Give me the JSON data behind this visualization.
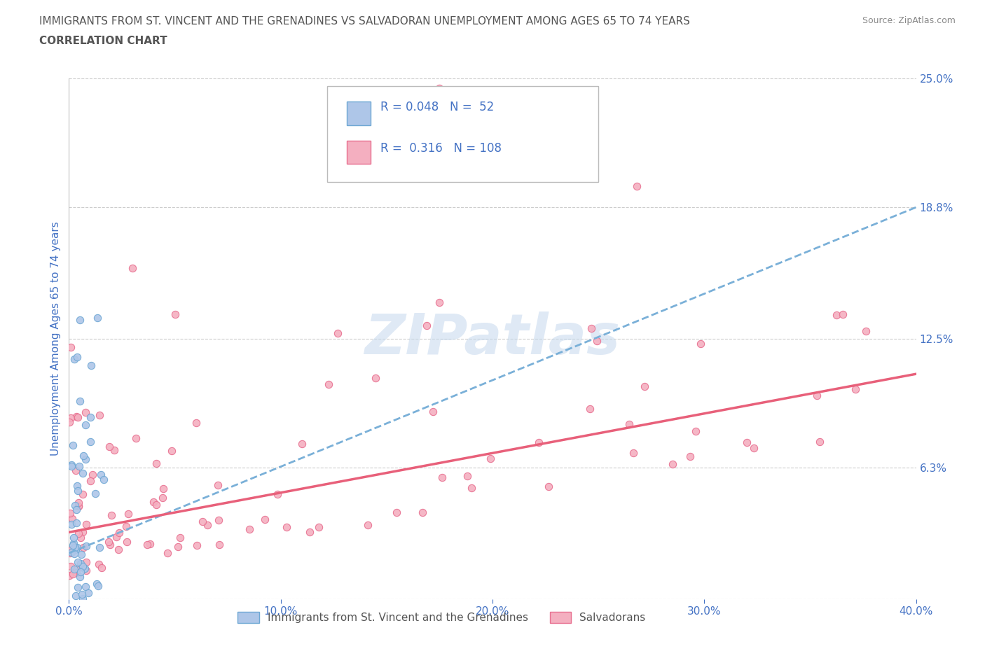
{
  "title_line1": "IMMIGRANTS FROM ST. VINCENT AND THE GRENADINES VS SALVADORAN UNEMPLOYMENT AMONG AGES 65 TO 74 YEARS",
  "title_line2": "CORRELATION CHART",
  "source_text": "Source: ZipAtlas.com",
  "ylabel": "Unemployment Among Ages 65 to 74 years",
  "xlim": [
    0.0,
    0.4
  ],
  "ylim": [
    0.0,
    0.25
  ],
  "xticks": [
    0.0,
    0.1,
    0.2,
    0.3,
    0.4
  ],
  "xticklabels": [
    "0.0%",
    "10.0%",
    "20.0%",
    "30.0%",
    "40.0%"
  ],
  "right_ytick_vals": [
    0.0,
    0.063,
    0.125,
    0.188,
    0.25
  ],
  "right_yticklabels": [
    "",
    "6.3%",
    "12.5%",
    "18.8%",
    "25.0%"
  ],
  "R_blue": 0.048,
  "N_blue": 52,
  "R_pink": 0.316,
  "N_pink": 108,
  "blue_fill_color": "#aec6e8",
  "pink_fill_color": "#f4afc0",
  "blue_edge_color": "#6fa8d4",
  "pink_edge_color": "#e87090",
  "blue_trend_color": "#7ab0d8",
  "pink_trend_color": "#e8607a",
  "legend_label_blue": "Immigrants from St. Vincent and the Grenadines",
  "legend_label_pink": "Salvadorans",
  "watermark": "ZIPatlas",
  "title_color": "#555555",
  "axis_label_color": "#4472c4",
  "tick_color": "#4472c4",
  "grid_color": "#cccccc",
  "background_color": "#ffffff"
}
